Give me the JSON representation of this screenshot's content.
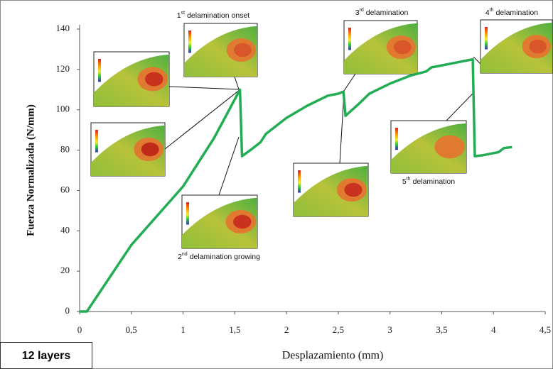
{
  "chart_data": {
    "type": "line",
    "ylabel": "Fuerza Normalizada (N/mm)",
    "xlabel": "Desplazamiento (mm)",
    "box_label": "12 layers",
    "color": "#22ad55",
    "x": [
      0,
      0.07,
      0.5,
      1,
      1.3,
      1.55,
      1.57,
      1.65,
      1.75,
      1.8,
      2,
      2.2,
      2.4,
      2.5,
      2.55,
      2.57,
      2.7,
      2.8,
      3,
      3.2,
      3.35,
      3.4,
      3.6,
      3.8,
      3.82,
      3.9,
      4,
      4.05,
      4.1,
      4.18
    ],
    "values": [
      0,
      0,
      33,
      62,
      86,
      110,
      77,
      80,
      84,
      88,
      96,
      102,
      107,
      108,
      109,
      97,
      103,
      108,
      113,
      117,
      119,
      121,
      123,
      125,
      77,
      77.5,
      78.5,
      79,
      81,
      81.5
    ],
    "xlim": [
      0,
      4.5
    ],
    "ylim": [
      0,
      140
    ],
    "xticks": [
      0,
      {
        "value": 0.5,
        "label": "0,5"
      },
      1,
      {
        "value": 1.5,
        "label": "1,5"
      },
      2,
      {
        "value": 2.5,
        "label": "2,5"
      },
      3,
      {
        "value": 3.5,
        "label": "3,5"
      },
      4,
      {
        "value": 4.5,
        "label": "4,5"
      }
    ],
    "yticks": [
      0,
      20,
      40,
      60,
      80,
      100,
      120,
      140
    ],
    "annotations": [
      {
        "ordinal": "1",
        "suffix": "st",
        "text": "delamination onset"
      },
      {
        "ordinal": "2",
        "suffix": "nd",
        "text": "delamination growing"
      },
      {
        "ordinal": "3",
        "suffix": "rd",
        "text": "delamination"
      },
      {
        "ordinal": "4",
        "suffix": "th",
        "text": "delamination"
      },
      {
        "ordinal": "5",
        "suffix": "th",
        "text": "delamination"
      }
    ]
  }
}
